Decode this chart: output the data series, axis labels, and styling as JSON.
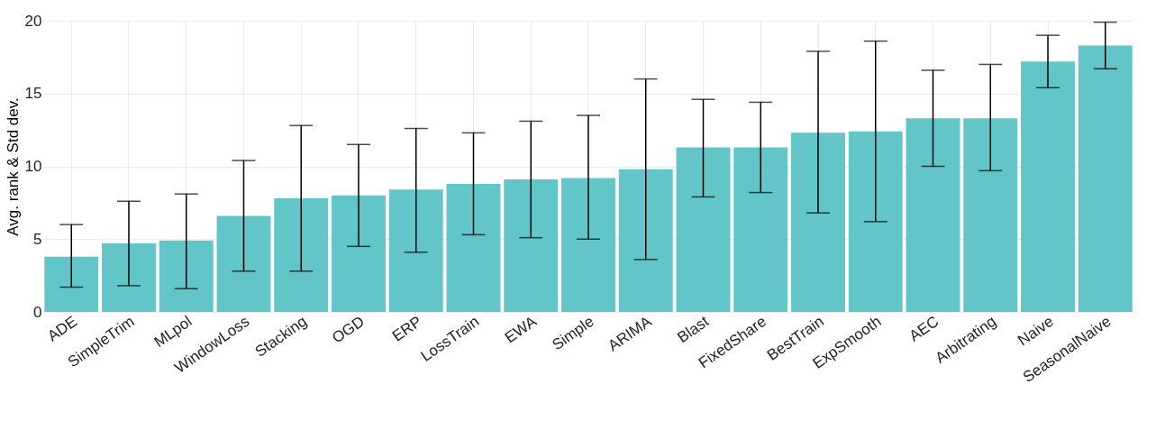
{
  "chart_data": {
    "type": "bar",
    "ylabel": "Avg. rank & Std dev.",
    "categories": [
      "ADE",
      "SimpleTrim",
      "MLpol",
      "WindowLoss",
      "Stacking",
      "OGD",
      "ERP",
      "LossTrain",
      "EWA",
      "Simple",
      "ARIMA",
      "Blast",
      "FixedShare",
      "BestTrain",
      "ExpSmooth",
      "AEC",
      "Arbitrating",
      "Naive",
      "SeasonalNaive"
    ],
    "values": [
      3.8,
      4.7,
      4.9,
      6.6,
      7.8,
      8.0,
      8.4,
      8.8,
      9.1,
      9.2,
      9.8,
      11.3,
      11.3,
      12.3,
      12.4,
      13.3,
      13.3,
      17.2,
      18.3
    ],
    "errors": [
      [
        1.7,
        6.0
      ],
      [
        1.8,
        7.6
      ],
      [
        1.6,
        8.1
      ],
      [
        2.8,
        10.4
      ],
      [
        2.8,
        12.8
      ],
      [
        4.5,
        11.5
      ],
      [
        4.1,
        12.6
      ],
      [
        5.3,
        12.3
      ],
      [
        5.1,
        13.1
      ],
      [
        5.0,
        13.5
      ],
      [
        3.6,
        16.0
      ],
      [
        7.9,
        14.6
      ],
      [
        8.2,
        14.4
      ],
      [
        6.8,
        17.9
      ],
      [
        6.2,
        18.6
      ],
      [
        10.0,
        16.6
      ],
      [
        9.7,
        17.0
      ],
      [
        15.4,
        19.0
      ],
      [
        16.7,
        19.9
      ]
    ],
    "color": "#62c6c8",
    "ylim": [
      0,
      20
    ],
    "yticks": [
      0,
      5,
      10,
      15,
      20
    ],
    "grid": true
  }
}
